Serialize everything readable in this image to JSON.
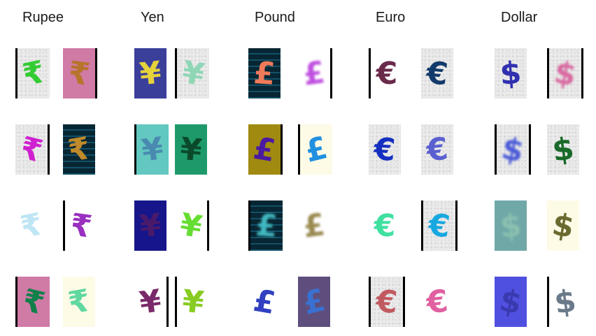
{
  "headers": [
    "Rupee",
    "Yen",
    "Pound",
    "Euro",
    "Dollar"
  ],
  "tiles": [
    [
      {
        "glyph": "₹",
        "fg": "#33cc33",
        "bg": "noise"
      },
      {
        "glyph": "₹",
        "fg": "#b8742a",
        "bg": "#d07aa6"
      },
      {
        "glyph": "¥",
        "fg": "#e6d23a",
        "bg": "#3a3f9a"
      },
      {
        "glyph": "¥",
        "fg": "#8fd6b6",
        "bg": "noise"
      },
      {
        "glyph": "£",
        "fg": "#f07a5a",
        "bg": "stripes"
      },
      {
        "glyph": "£",
        "fg": "#c050e0",
        "bg": "#ffffff"
      },
      {
        "glyph": "€",
        "fg": "#6a2a4a",
        "bg": "#ffffff"
      },
      {
        "glyph": "€",
        "fg": "#123a6a",
        "bg": "noise"
      },
      {
        "glyph": "$",
        "fg": "#3030b0",
        "bg": "noise"
      },
      {
        "glyph": "$",
        "fg": "#d868a0",
        "bg": "noise"
      }
    ],
    [
      {
        "glyph": "₹",
        "fg": "#d020d0",
        "bg": "noise"
      },
      {
        "glyph": "₹",
        "fg": "#c08a2a",
        "bg": "stripes"
      },
      {
        "glyph": "¥",
        "fg": "#4a8ab0",
        "bg": "#62c8c0"
      },
      {
        "glyph": "¥",
        "fg": "#0a4a2a",
        "bg": "#1e9a6a"
      },
      {
        "glyph": "£",
        "fg": "#4a1aa0",
        "bg": "#a08a10"
      },
      {
        "glyph": "£",
        "fg": "#2090e0",
        "bg": "#fdfbe6"
      },
      {
        "glyph": "€",
        "fg": "#1530c0",
        "bg": "noise"
      },
      {
        "glyph": "€",
        "fg": "#5a60d0",
        "bg": "noise"
      },
      {
        "glyph": "$",
        "fg": "#4a5ad8",
        "bg": "noise"
      },
      {
        "glyph": "$",
        "fg": "#1a6a2a",
        "bg": "noise"
      }
    ],
    [
      {
        "glyph": "₹",
        "fg": "#bfe6f4",
        "bg": "#ffffff"
      },
      {
        "glyph": "₹",
        "fg": "#9a30c0",
        "bg": "#ffffff"
      },
      {
        "glyph": "¥",
        "fg": "#4a1a6a",
        "bg": "#16168a"
      },
      {
        "glyph": "¥",
        "fg": "#66dd33",
        "bg": "#ffffff"
      },
      {
        "glyph": "£",
        "fg": "#40b8c0",
        "bg": "stripes"
      },
      {
        "glyph": "£",
        "fg": "#9a8a50",
        "bg": "#ffffff"
      },
      {
        "glyph": "€",
        "fg": "#40e0a0",
        "bg": "#ffffff"
      },
      {
        "glyph": "€",
        "fg": "#18a8e0",
        "bg": "noise"
      },
      {
        "glyph": "$",
        "fg": "#8ac0b0",
        "bg": "#70a8a8"
      },
      {
        "glyph": "$",
        "fg": "#6a6a30",
        "bg": "#fdfbe6"
      }
    ],
    [
      {
        "glyph": "₹",
        "fg": "#10804a",
        "bg": "#d07aa6"
      },
      {
        "glyph": "₹",
        "fg": "#60d8a0",
        "bg": "#fdfbe6"
      },
      {
        "glyph": "¥",
        "fg": "#7a2a6a",
        "bg": "#ffffff"
      },
      {
        "glyph": "¥",
        "fg": "#88cc22",
        "bg": "#ffffff"
      },
      {
        "glyph": "£",
        "fg": "#3040c0",
        "bg": "#ffffff"
      },
      {
        "glyph": "£",
        "fg": "#3a70d0",
        "bg": "#5e4e7e"
      },
      {
        "glyph": "€",
        "fg": "#c05a60",
        "bg": "noise"
      },
      {
        "glyph": "€",
        "fg": "#e060a0",
        "bg": "#ffffff"
      },
      {
        "glyph": "$",
        "fg": "#3a3ab0",
        "bg": "#5050e0"
      },
      {
        "glyph": "$",
        "fg": "#6a7a8a",
        "bg": "#ffffff"
      }
    ]
  ]
}
